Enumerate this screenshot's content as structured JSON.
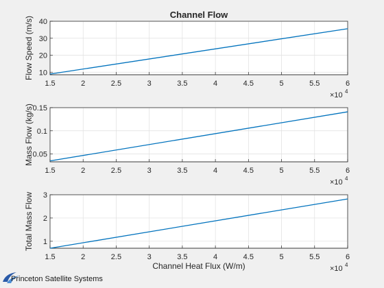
{
  "figure": {
    "background": "#f0f0f0",
    "logo_text": "Princeton Satellite Systems"
  },
  "chart_data": [
    {
      "type": "line",
      "title": "Channel Flow",
      "xlabel": "",
      "ylabel": "Flow Speed (m/s)",
      "x_tick_labels": [
        "1.5",
        "2",
        "2.5",
        "3",
        "3.5",
        "4",
        "4.5",
        "5",
        "5.5",
        "6"
      ],
      "x_ticks": [
        15000,
        20000,
        25000,
        30000,
        35000,
        40000,
        45000,
        50000,
        55000,
        60000
      ],
      "x_exponent": {
        "base": "×10",
        "power": "4"
      },
      "y_tick_labels": [
        "10",
        "20",
        "30",
        "40"
      ],
      "y_ticks": [
        10,
        20,
        30,
        40
      ],
      "xlim": [
        15000,
        60000
      ],
      "ylim": [
        8.5,
        40
      ],
      "grid": true,
      "series": [
        {
          "color": "#0072bd",
          "x": [
            15000,
            60000
          ],
          "y": [
            8.9,
            35.6
          ]
        }
      ]
    },
    {
      "type": "line",
      "title": "",
      "xlabel": "",
      "ylabel": "Mass Flow (kg/s)",
      "x_tick_labels": [
        "1.5",
        "2",
        "2.5",
        "3",
        "3.5",
        "4",
        "4.5",
        "5",
        "5.5",
        "6"
      ],
      "x_ticks": [
        15000,
        20000,
        25000,
        30000,
        35000,
        40000,
        45000,
        50000,
        55000,
        60000
      ],
      "x_exponent": {
        "base": "×10",
        "power": "4"
      },
      "y_tick_labels": [
        "0.05",
        "0.1",
        "0.15"
      ],
      "y_ticks": [
        0.05,
        0.1,
        0.15
      ],
      "xlim": [
        15000,
        60000
      ],
      "ylim": [
        0.033,
        0.15
      ],
      "grid": true,
      "series": [
        {
          "color": "#0072bd",
          "x": [
            15000,
            60000
          ],
          "y": [
            0.035,
            0.141
          ]
        }
      ]
    },
    {
      "type": "line",
      "title": "",
      "xlabel": "Channel Heat Flux (W/m)",
      "ylabel": "Total Mass Flow",
      "x_tick_labels": [
        "1.5",
        "2",
        "2.5",
        "3",
        "3.5",
        "4",
        "4.5",
        "5",
        "5.5",
        "6"
      ],
      "x_ticks": [
        15000,
        20000,
        25000,
        30000,
        35000,
        40000,
        45000,
        50000,
        55000,
        60000
      ],
      "x_exponent": {
        "base": "×10",
        "power": "4"
      },
      "y_tick_labels": [
        "1",
        "2",
        "3"
      ],
      "y_ticks": [
        1,
        2,
        3
      ],
      "xlim": [
        15000,
        60000
      ],
      "ylim": [
        0.7,
        3
      ],
      "grid": true,
      "series": [
        {
          "color": "#0072bd",
          "x": [
            15000,
            60000
          ],
          "y": [
            0.7,
            2.82
          ]
        }
      ]
    }
  ]
}
